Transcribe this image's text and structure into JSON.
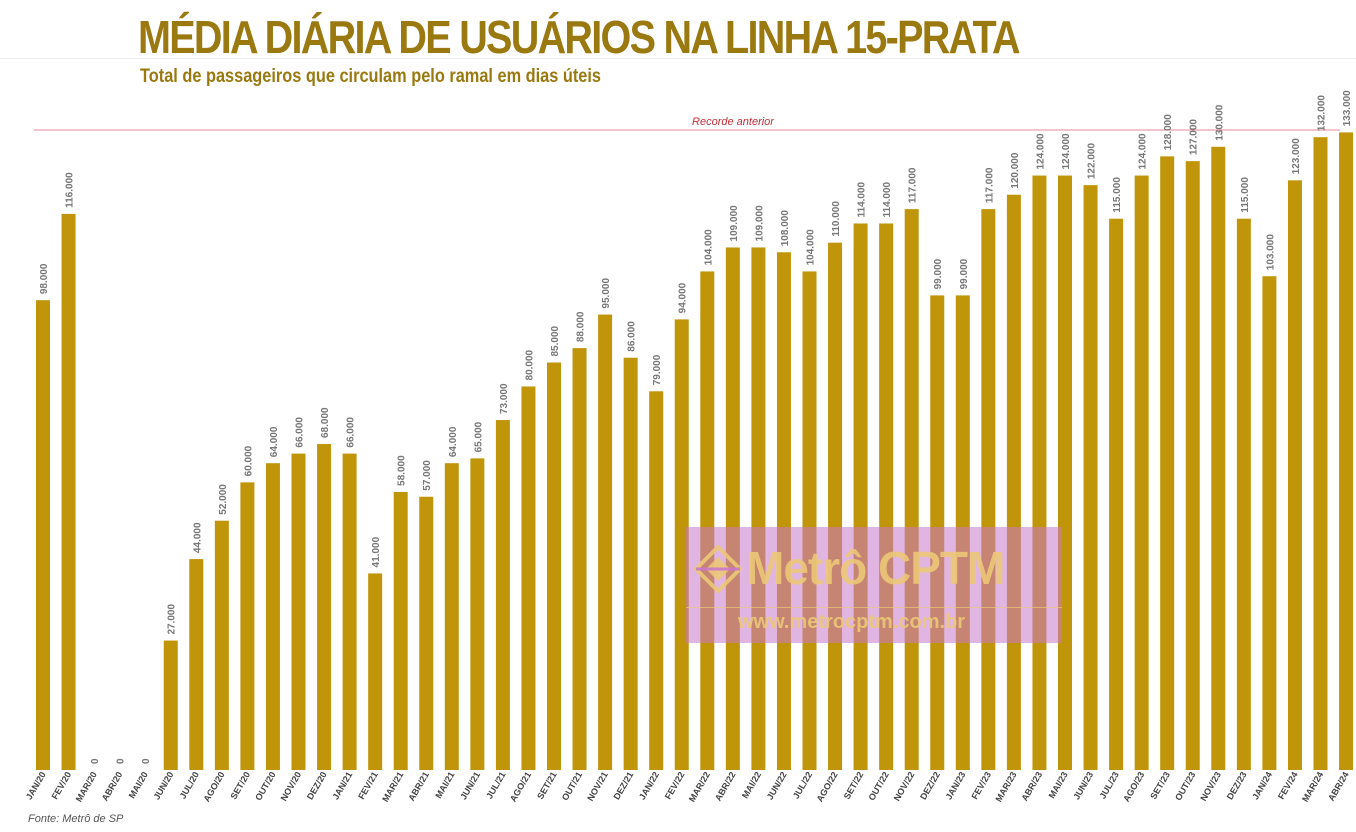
{
  "header": {
    "title": "MÉDIA DIÁRIA DE USUÁRIOS NA LINHA 15-PRATA",
    "subtitle": "Total de passageiros que circulam pelo ramal em dias úteis"
  },
  "footer": {
    "source": "Fonte: Metrô de SP"
  },
  "watermark": {
    "brand": "Metrô CPTM",
    "url": "www.metrocptm.com.br"
  },
  "colors": {
    "bar": "#c0950a",
    "title": "#9a7a10",
    "record_line": "#e88a9a"
  },
  "chart_data": {
    "type": "bar",
    "title": "MÉDIA DIÁRIA DE USUÁRIOS NA LINHA 15-PRATA",
    "subtitle": "Total de passageiros que circulam pelo ramal em dias úteis",
    "xlabel": "",
    "ylabel": "",
    "ylim": [
      0,
      136000
    ],
    "grid": false,
    "legend": "none",
    "categories": [
      "JAN/20",
      "FEV/20",
      "MAR/20",
      "ABR/20",
      "MAI/20",
      "JUN/20",
      "JUL/20",
      "AGO/20",
      "SET/20",
      "OUT/20",
      "NOV/20",
      "DEZ/20",
      "JAN/21",
      "FEV/21",
      "MAR/21",
      "ABR/21",
      "MAI/21",
      "JUN/21",
      "JUL/21",
      "AGO/21",
      "SET/21",
      "OUT/21",
      "NOV/21",
      "DEZ/21",
      "JAN/22",
      "FEV/22",
      "MAR/22",
      "ABR/22",
      "MAI/22",
      "JUN/22",
      "JUL/22",
      "AGO/22",
      "SET/22",
      "OUT/22",
      "NOV/22",
      "DEZ/22",
      "JAN/23",
      "FEV/23",
      "MAR/23",
      "ABR/23",
      "MAI/23",
      "JUN/23",
      "JUL/23",
      "AGO/23",
      "SET/23",
      "OUT/23",
      "NOV/23",
      "DEZ/23",
      "JAN/24",
      "FEV/24",
      "MAR/24",
      "ABR/24"
    ],
    "values": [
      98000,
      116000,
      0,
      0,
      0,
      27000,
      44000,
      52000,
      60000,
      64000,
      66000,
      68000,
      66000,
      41000,
      58000,
      57000,
      64000,
      65000,
      73000,
      80000,
      85000,
      88000,
      95000,
      86000,
      79000,
      94000,
      104000,
      109000,
      109000,
      108000,
      104000,
      110000,
      114000,
      114000,
      117000,
      99000,
      99000,
      117000,
      120000,
      124000,
      124000,
      122000,
      115000,
      124000,
      128000,
      127000,
      130000,
      115000,
      103000,
      123000,
      132000,
      133000
    ],
    "data_labels": [
      "98.000",
      "116.000",
      "0",
      "0",
      "0",
      "27.000",
      "44.000",
      "52.000",
      "60.000",
      "64.000",
      "66.000",
      "68.000",
      "66.000",
      "41.000",
      "58.000",
      "57.000",
      "64.000",
      "65.000",
      "73.000",
      "80.000",
      "85.000",
      "88.000",
      "95.000",
      "86.000",
      "79.000",
      "94.000",
      "104.000",
      "109.000",
      "109.000",
      "108.000",
      "104.000",
      "110.000",
      "114.000",
      "114.000",
      "117.000",
      "99.000",
      "99.000",
      "117.000",
      "120.000",
      "124.000",
      "124.000",
      "122.000",
      "115.000",
      "124.000",
      "128.000",
      "127.000",
      "130.000",
      "115.000",
      "103.000",
      "123.000",
      "132.000",
      "133.000"
    ],
    "annotations": [
      {
        "text": "Recorde anterior",
        "y": 133500
      }
    ]
  }
}
